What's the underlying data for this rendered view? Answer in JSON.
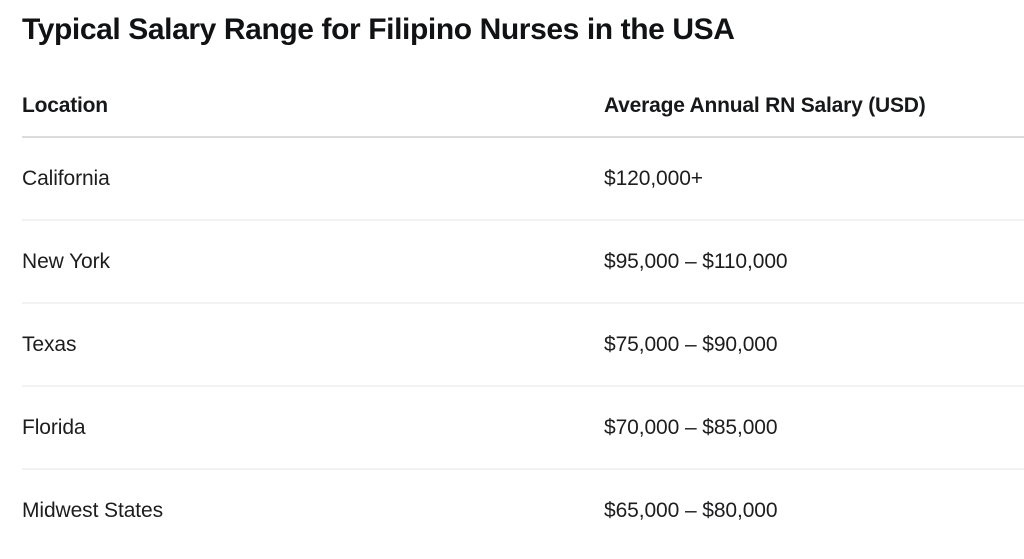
{
  "page": {
    "title": "Typical Salary Range for Filipino Nurses in the USA"
  },
  "table": {
    "columns": {
      "location": "Location",
      "salary": "Average Annual RN Salary (USD)"
    },
    "rows": [
      {
        "location": "California",
        "salary": "$120,000+"
      },
      {
        "location": "New York",
        "salary": "$95,000 – $110,000"
      },
      {
        "location": "Texas",
        "salary": "$75,000 – $90,000"
      },
      {
        "location": "Florida",
        "salary": "$70,000 – $85,000"
      },
      {
        "location": "Midwest States",
        "salary": "$65,000 – $80,000"
      }
    ]
  },
  "chart_data": {
    "type": "table",
    "title": "Typical Salary Range for Filipino Nurses in the USA",
    "columns": [
      "Location",
      "Average Annual RN Salary (USD)"
    ],
    "rows": [
      [
        "California",
        "$120,000+"
      ],
      [
        "New York",
        "$95,000 – $110,000"
      ],
      [
        "Texas",
        "$75,000 – $90,000"
      ],
      [
        "Florida",
        "$70,000 – $85,000"
      ],
      [
        "Midwest States",
        "$65,000 – $80,000"
      ]
    ]
  },
  "colors": {
    "background": "#ffffff",
    "text": "#1d1d1f",
    "title_text": "#111214",
    "header_divider": "#dbdbdb",
    "row_divider": "#f2f2f2"
  }
}
